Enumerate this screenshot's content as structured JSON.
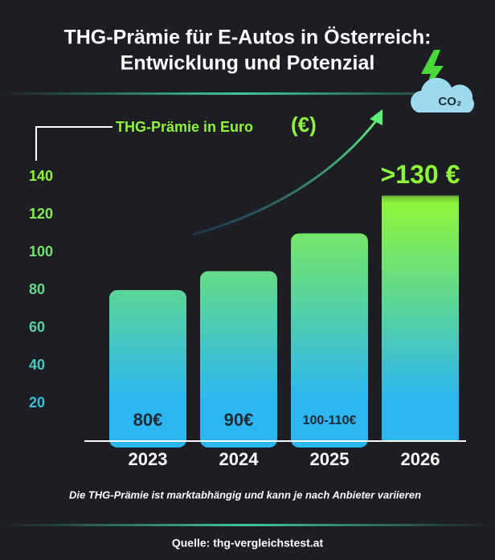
{
  "chart_data": {
    "type": "bar",
    "title": "THG-Prämie für E-Autos in Österreich:",
    "subtitle": "Entwicklung und Potenzial",
    "ylabel": "THG-Prämie in Euro",
    "ylabel_unit": "(€)",
    "icon_label": "CO₂",
    "categories": [
      "2023",
      "2024",
      "2025",
      "2026"
    ],
    "values": [
      80,
      90,
      110,
      130
    ],
    "value_labels": [
      "80€",
      "90€",
      "100-110€",
      ">130 €"
    ],
    "ylim": [
      0,
      140
    ],
    "yticks": [
      20,
      40,
      60,
      80,
      100,
      120,
      140
    ],
    "colors": [
      "#8ef53a",
      "#2cb6f2"
    ],
    "note": "Die THG-Prämie ist marktabhängig und kann je nach Anbieter variieren",
    "source": "Quelle: thg-vergleichstest.at"
  }
}
